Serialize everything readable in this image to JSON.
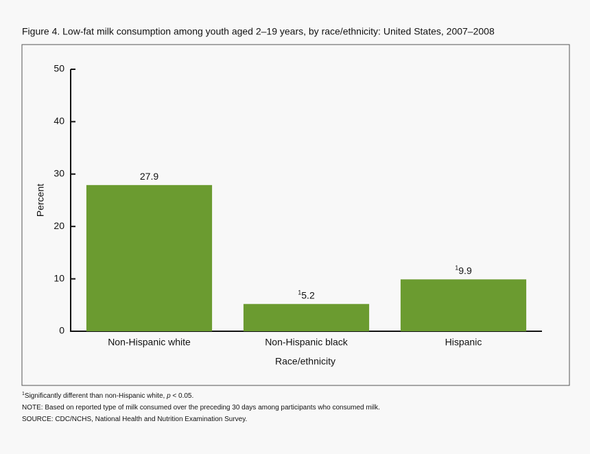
{
  "chart_data": {
    "type": "bar",
    "title": "Figure 4. Low-fat milk consumption among youth aged 2–19 years, by race/ethnicity: United States, 2007–2008",
    "x_label": "Race/ethnicity",
    "y_label": "Percent",
    "categories": [
      "Non-Hispanic white",
      "Non-Hispanic black",
      "Hispanic"
    ],
    "values": [
      27.9,
      5.2,
      9.9
    ],
    "value_notes": [
      null,
      "1",
      "1"
    ],
    "color": "#6b9b30",
    "ylim": [
      0,
      50
    ],
    "yticks": [
      0,
      10,
      20,
      30,
      40,
      50
    ],
    "grid": false,
    "notes": [
      {
        "marker": "1",
        "text": "Significantly different than non-Hispanic white, ",
        "italic": "p",
        "rest": " < 0.05."
      },
      {
        "text": "NOTE: Based on reported type of milk consumed over the preceding 30 days among participants who consumed milk."
      },
      {
        "text": "SOURCE: CDC/NCHS, National Health and Nutrition Examination Survey."
      }
    ]
  }
}
